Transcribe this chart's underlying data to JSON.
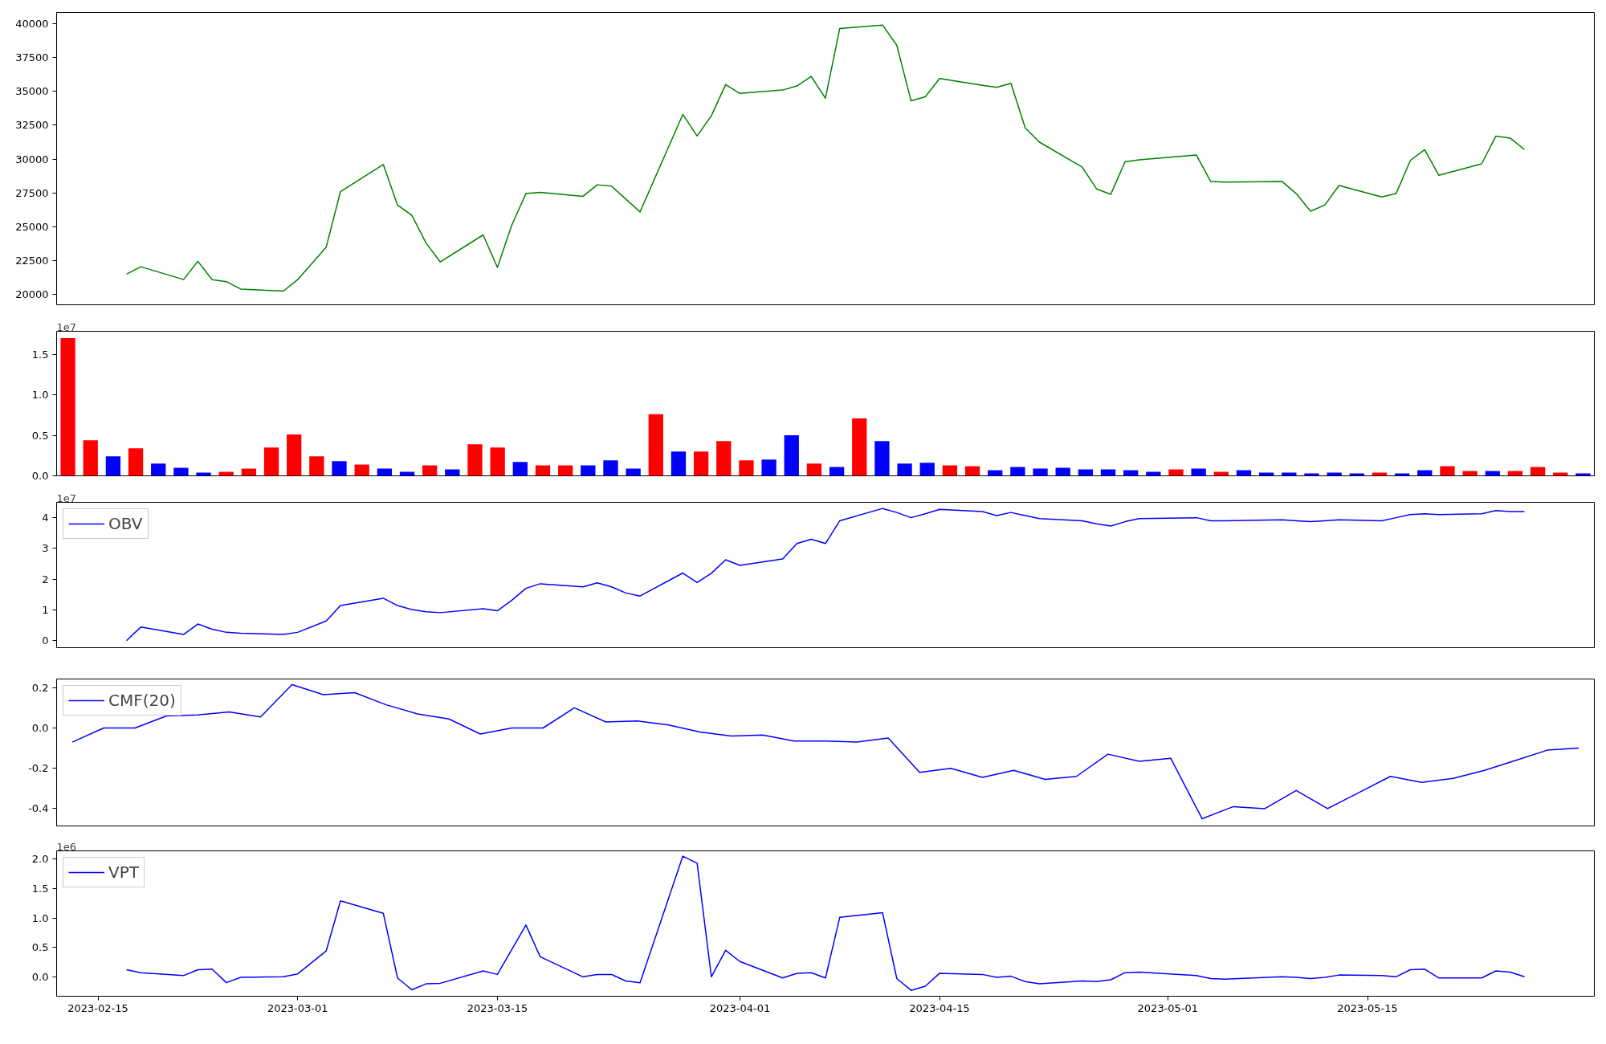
{
  "chart_data": [
    {
      "type": "line",
      "x": [
        "2023-02-17",
        "2023-02-18",
        "2023-02-21",
        "2023-02-22",
        "2023-02-23",
        "2023-02-24",
        "2023-02-25",
        "2023-02-28",
        "2023-03-01",
        "2023-03-03",
        "2023-03-04",
        "2023-03-07",
        "2023-03-08",
        "2023-03-09",
        "2023-03-10",
        "2023-03-11",
        "2023-03-14",
        "2023-03-15",
        "2023-03-16",
        "2023-03-17",
        "2023-03-18",
        "2023-03-21",
        "2023-03-22",
        "2023-03-23",
        "2023-03-24",
        "2023-03-25",
        "2023-03-28",
        "2023-03-29",
        "2023-03-30",
        "2023-03-31",
        "2023-04-01",
        "2023-04-04",
        "2023-04-05",
        "2023-04-06",
        "2023-04-07",
        "2023-04-08",
        "2023-04-11",
        "2023-04-12",
        "2023-04-13",
        "2023-04-14",
        "2023-04-15",
        "2023-04-18",
        "2023-04-19",
        "2023-04-20",
        "2023-04-21",
        "2023-04-22",
        "2023-04-25",
        "2023-04-26",
        "2023-04-27",
        "2023-04-28",
        "2023-04-29",
        "2023-05-03",
        "2023-05-04",
        "2023-05-05",
        "2023-05-09",
        "2023-05-10",
        "2023-05-11",
        "2023-05-12",
        "2023-05-13",
        "2023-05-16",
        "2023-05-17",
        "2023-05-18",
        "2023-05-19",
        "2023-05-20",
        "2023-05-23",
        "2023-05-24",
        "2023-05-25",
        "2023-05-26"
      ],
      "series": [
        {
          "color": "#008000",
          "values": [
            21500,
            22050,
            21100,
            22450,
            21100,
            20950,
            20400,
            20250,
            21100,
            23500,
            27600,
            29600,
            26600,
            25850,
            23800,
            22400,
            24400,
            22000,
            25100,
            27450,
            27550,
            27250,
            28100,
            28000,
            27050,
            26100,
            33300,
            31700,
            33200,
            35500,
            34850,
            35100,
            35400,
            36100,
            34500,
            39650,
            39900,
            38400,
            34300,
            34600,
            35950,
            35450,
            35300,
            35600,
            32300,
            31250,
            29400,
            27800,
            27400,
            29800,
            29950,
            30300,
            28350,
            28300,
            28350,
            27450,
            26150,
            26600,
            28050,
            27200,
            27450,
            29900,
            30700,
            28800,
            29650,
            31700,
            31550,
            30700
          ]
        }
      ],
      "xlim": [
        "2023-02-12T02:24",
        "2023-05-30T21:36"
      ],
      "ylim": [
        19240,
        40830
      ],
      "yticks": [
        20000,
        22500,
        25000,
        27500,
        30000,
        32500,
        35000,
        37500,
        40000
      ],
      "tick_labels": "y"
    },
    {
      "type": "bar",
      "categories": [
        null,
        null,
        null,
        null,
        null,
        null,
        null,
        null,
        null,
        null,
        null,
        null,
        null,
        null,
        null,
        null,
        null,
        null,
        null,
        null,
        null,
        null,
        null,
        null,
        null,
        null,
        null,
        null,
        null,
        null,
        null,
        null,
        null,
        null,
        null,
        null,
        null,
        null,
        null,
        null,
        null,
        null,
        null,
        null,
        null,
        null,
        null,
        null,
        null,
        null,
        null,
        null,
        null,
        null,
        null,
        null,
        null,
        null,
        null,
        null,
        null,
        null,
        null,
        null,
        null,
        null,
        null,
        null
      ],
      "values": [
        1.7,
        0.44,
        0.24,
        0.34,
        0.15,
        0.1,
        0.04,
        0.05,
        0.09,
        0.35,
        0.51,
        0.24,
        0.18,
        0.14,
        0.09,
        0.05,
        0.13,
        0.08,
        0.39,
        0.35,
        0.17,
        0.13,
        0.13,
        0.13,
        0.19,
        0.09,
        0.76,
        0.3,
        0.3,
        0.43,
        0.19,
        0.2,
        0.5,
        0.15,
        0.11,
        0.71,
        0.43,
        0.15,
        0.16,
        0.13,
        0.12,
        0.07,
        0.11,
        0.09,
        0.1,
        0.08,
        0.08,
        0.07,
        0.05,
        0.08,
        0.09,
        0.05,
        0.07,
        0.04,
        0.04,
        0.03,
        0.04,
        0.03,
        0.04,
        0.03,
        0.07,
        0.12,
        0.06,
        0.06,
        0.06,
        0.11,
        0.04,
        0.03
      ],
      "colors": [
        "#ff0000",
        "#ff0000",
        "#0000ff",
        "#ff0000",
        "#0000ff",
        "#0000ff",
        "#0000ff",
        "#ff0000",
        "#ff0000",
        "#ff0000",
        "#ff0000",
        "#ff0000",
        "#0000ff",
        "#ff0000",
        "#0000ff",
        "#0000ff",
        "#ff0000",
        "#0000ff",
        "#ff0000",
        "#ff0000",
        "#0000ff",
        "#ff0000",
        "#ff0000",
        "#0000ff",
        "#0000ff",
        "#0000ff",
        "#ff0000",
        "#0000ff",
        "#ff0000",
        "#ff0000",
        "#ff0000",
        "#0000ff",
        "#0000ff",
        "#ff0000",
        "#0000ff",
        "#ff0000",
        "#0000ff",
        "#0000ff",
        "#0000ff",
        "#ff0000",
        "#ff0000",
        "#0000ff",
        "#0000ff",
        "#0000ff",
        "#0000ff",
        "#0000ff",
        "#0000ff",
        "#0000ff",
        "#0000ff",
        "#ff0000",
        "#0000ff",
        "#ff0000",
        "#0000ff",
        "#0000ff",
        "#0000ff",
        "#0000ff",
        "#0000ff",
        "#0000ff",
        "#ff0000",
        "#0000ff",
        "#0000ff",
        "#ff0000",
        "#ff0000",
        "#0000ff",
        "#ff0000",
        "#ff0000",
        "#ff0000",
        "#0000ff"
      ],
      "ylim": [
        0,
        1.785
      ],
      "yticks": [
        {
          "value": 0,
          "label": "0.0"
        },
        0.5,
        {
          "value": 1,
          "label": "1.0"
        },
        1.5
      ],
      "tick_labels": "y",
      "annotations": [
        "1e7"
      ]
    },
    {
      "type": "line",
      "x": [
        "2023-02-17",
        "2023-02-18",
        "2023-02-21",
        "2023-02-22",
        "2023-02-23",
        "2023-02-24",
        "2023-02-25",
        "2023-02-28",
        "2023-03-01",
        "2023-03-03",
        "2023-03-04",
        "2023-03-07",
        "2023-03-08",
        "2023-03-09",
        "2023-03-10",
        "2023-03-11",
        "2023-03-14",
        "2023-03-15",
        "2023-03-16",
        "2023-03-17",
        "2023-03-18",
        "2023-03-21",
        "2023-03-22",
        "2023-03-23",
        "2023-03-24",
        "2023-03-25",
        "2023-03-28",
        "2023-03-29",
        "2023-03-30",
        "2023-03-31",
        "2023-04-01",
        "2023-04-04",
        "2023-04-05",
        "2023-04-06",
        "2023-04-07",
        "2023-04-08",
        "2023-04-11",
        "2023-04-12",
        "2023-04-13",
        "2023-04-14",
        "2023-04-15",
        "2023-04-18",
        "2023-04-19",
        "2023-04-20",
        "2023-04-21",
        "2023-04-22",
        "2023-04-25",
        "2023-04-26",
        "2023-04-27",
        "2023-04-28",
        "2023-04-29",
        "2023-05-03",
        "2023-05-04",
        "2023-05-05",
        "2023-05-09",
        "2023-05-10",
        "2023-05-11",
        "2023-05-12",
        "2023-05-13",
        "2023-05-16",
        "2023-05-17",
        "2023-05-18",
        "2023-05-19",
        "2023-05-20",
        "2023-05-23",
        "2023-05-24",
        "2023-05-25",
        "2023-05-26"
      ],
      "series": [
        {
          "name": "OBV",
          "color": "#0000ff",
          "values": [
            0,
            0.44,
            0.2,
            0.54,
            0.37,
            0.27,
            0.24,
            0.2,
            0.27,
            0.64,
            1.14,
            1.38,
            1.14,
            1.01,
            0.94,
            0.91,
            1.04,
            0.97,
            1.31,
            1.7,
            1.85,
            1.75,
            1.88,
            1.75,
            1.55,
            1.45,
            2.2,
            1.89,
            2.19,
            2.63,
            2.45,
            2.66,
            3.16,
            3.3,
            3.16,
            3.9,
            4.3,
            4.17,
            4.0,
            4.13,
            4.27,
            4.2,
            4.07,
            4.17,
            4.07,
            3.97,
            3.9,
            3.8,
            3.73,
            3.87,
            3.97,
            4.0,
            3.9,
            3.9,
            3.93,
            3.9,
            3.87,
            3.9,
            3.93,
            3.9,
            4.0,
            4.1,
            4.13,
            4.1,
            4.13,
            4.23,
            4.2,
            4.2
          ]
        }
      ],
      "xlim": [
        "2023-02-12T02:24",
        "2023-05-30T21:36"
      ],
      "ylim": [
        -0.23,
        4.5
      ],
      "yticks": [
        0,
        1,
        2,
        3,
        4
      ],
      "tick_labels": "y",
      "legend": "top left",
      "annotations": [
        "1e7"
      ]
    },
    {
      "type": "line",
      "categories": [
        null,
        null,
        null,
        null,
        null,
        null,
        null,
        null,
        null,
        null,
        null,
        null,
        null,
        null,
        null,
        null,
        null,
        null,
        null,
        null,
        null,
        null,
        null,
        null,
        null,
        null,
        null,
        null,
        null,
        null,
        null,
        null,
        null,
        null,
        null,
        null,
        null,
        null,
        null,
        null,
        null,
        null,
        null,
        null,
        null,
        null,
        null,
        null,
        null
      ],
      "series": [
        {
          "name": "CMF(20)",
          "color": "#0000ff",
          "values": [
            -0.07,
            0.0,
            0.0,
            0.06,
            0.065,
            0.08,
            0.055,
            0.215,
            0.165,
            0.175,
            0.115,
            0.07,
            0.045,
            -0.03,
            0.0,
            0.0,
            0.1,
            0.03,
            0.035,
            0.015,
            -0.02,
            -0.04,
            -0.035,
            -0.065,
            -0.065,
            -0.07,
            -0.05,
            -0.22,
            -0.2,
            -0.245,
            -0.21,
            -0.255,
            -0.24,
            -0.13,
            -0.165,
            -0.15,
            -0.45,
            -0.39,
            -0.4,
            -0.31,
            -0.4,
            -0.32,
            -0.24,
            -0.27,
            -0.25,
            -0.21,
            -0.16,
            -0.11,
            -0.1
          ]
        }
      ],
      "ylim": [
        -0.486,
        0.243
      ],
      "yticks": [
        -0.4,
        -0.2,
        {
          "value": 0,
          "label": "0.0"
        },
        0.2
      ],
      "tick_labels": "y",
      "legend": "top left"
    },
    {
      "type": "line",
      "x": [
        "2023-02-17",
        "2023-02-18",
        "2023-02-21",
        "2023-02-22",
        "2023-02-23",
        "2023-02-24",
        "2023-02-25",
        "2023-02-28",
        "2023-03-01",
        "2023-03-03",
        "2023-03-04",
        "2023-03-07",
        "2023-03-08",
        "2023-03-09",
        "2023-03-10",
        "2023-03-11",
        "2023-03-14",
        "2023-03-15",
        "2023-03-16",
        "2023-03-17",
        "2023-03-18",
        "2023-03-21",
        "2023-03-22",
        "2023-03-23",
        "2023-03-24",
        "2023-03-25",
        "2023-03-28",
        "2023-03-29",
        "2023-03-30",
        "2023-03-31",
        "2023-04-01",
        "2023-04-04",
        "2023-04-05",
        "2023-04-06",
        "2023-04-07",
        "2023-04-08",
        "2023-04-11",
        "2023-04-12",
        "2023-04-13",
        "2023-04-14",
        "2023-04-15",
        "2023-04-18",
        "2023-04-19",
        "2023-04-20",
        "2023-04-21",
        "2023-04-22",
        "2023-04-25",
        "2023-04-26",
        "2023-04-27",
        "2023-04-28",
        "2023-04-29",
        "2023-05-03",
        "2023-05-04",
        "2023-05-05",
        "2023-05-09",
        "2023-05-10",
        "2023-05-11",
        "2023-05-12",
        "2023-05-13",
        "2023-05-16",
        "2023-05-17",
        "2023-05-18",
        "2023-05-19",
        "2023-05-20",
        "2023-05-23",
        "2023-05-24",
        "2023-05-25",
        "2023-05-26"
      ],
      "series": [
        {
          "name": "VPT",
          "color": "#0000ff",
          "values": [
            0.12,
            0.07,
            0.02,
            0.12,
            0.13,
            -0.1,
            -0.01,
            0,
            0.05,
            0.44,
            1.29,
            1.08,
            -0.02,
            -0.22,
            -0.12,
            -0.11,
            0.1,
            0.04,
            0.46,
            0.88,
            0.34,
            0,
            0.04,
            0.04,
            -0.07,
            -0.1,
            2.05,
            1.93,
            0,
            0.45,
            0.26,
            -0.02,
            0.06,
            0.07,
            -0.02,
            1.01,
            1.09,
            -0.03,
            -0.23,
            -0.16,
            0.06,
            0.04,
            -0.01,
            0.01,
            -0.08,
            -0.12,
            -0.07,
            -0.08,
            -0.05,
            0.07,
            0.08,
            0.02,
            -0.03,
            -0.04,
            0,
            -0.01,
            -0.03,
            -0.01,
            0.03,
            0.02,
            0,
            0.12,
            0.13,
            -0.02,
            -0.02,
            0.1,
            0.08,
            0
          ]
        }
      ],
      "xlim": [
        "2023-02-12T02:24",
        "2023-05-30T21:36"
      ],
      "ylim": [
        -0.33,
        2.14
      ],
      "yticks": [
        {
          "value": 0,
          "label": "0.0"
        },
        0.5,
        {
          "value": 1,
          "label": "1.0"
        },
        1.5,
        {
          "value": 2,
          "label": "2.0"
        }
      ],
      "xticks": [
        "2023-02-15",
        "2023-03-01",
        "2023-03-15",
        "2023-04-01",
        "2023-04-15",
        "2023-05-01",
        "2023-05-15"
      ],
      "legend": "top left",
      "annotations": [
        "1e6"
      ]
    }
  ]
}
